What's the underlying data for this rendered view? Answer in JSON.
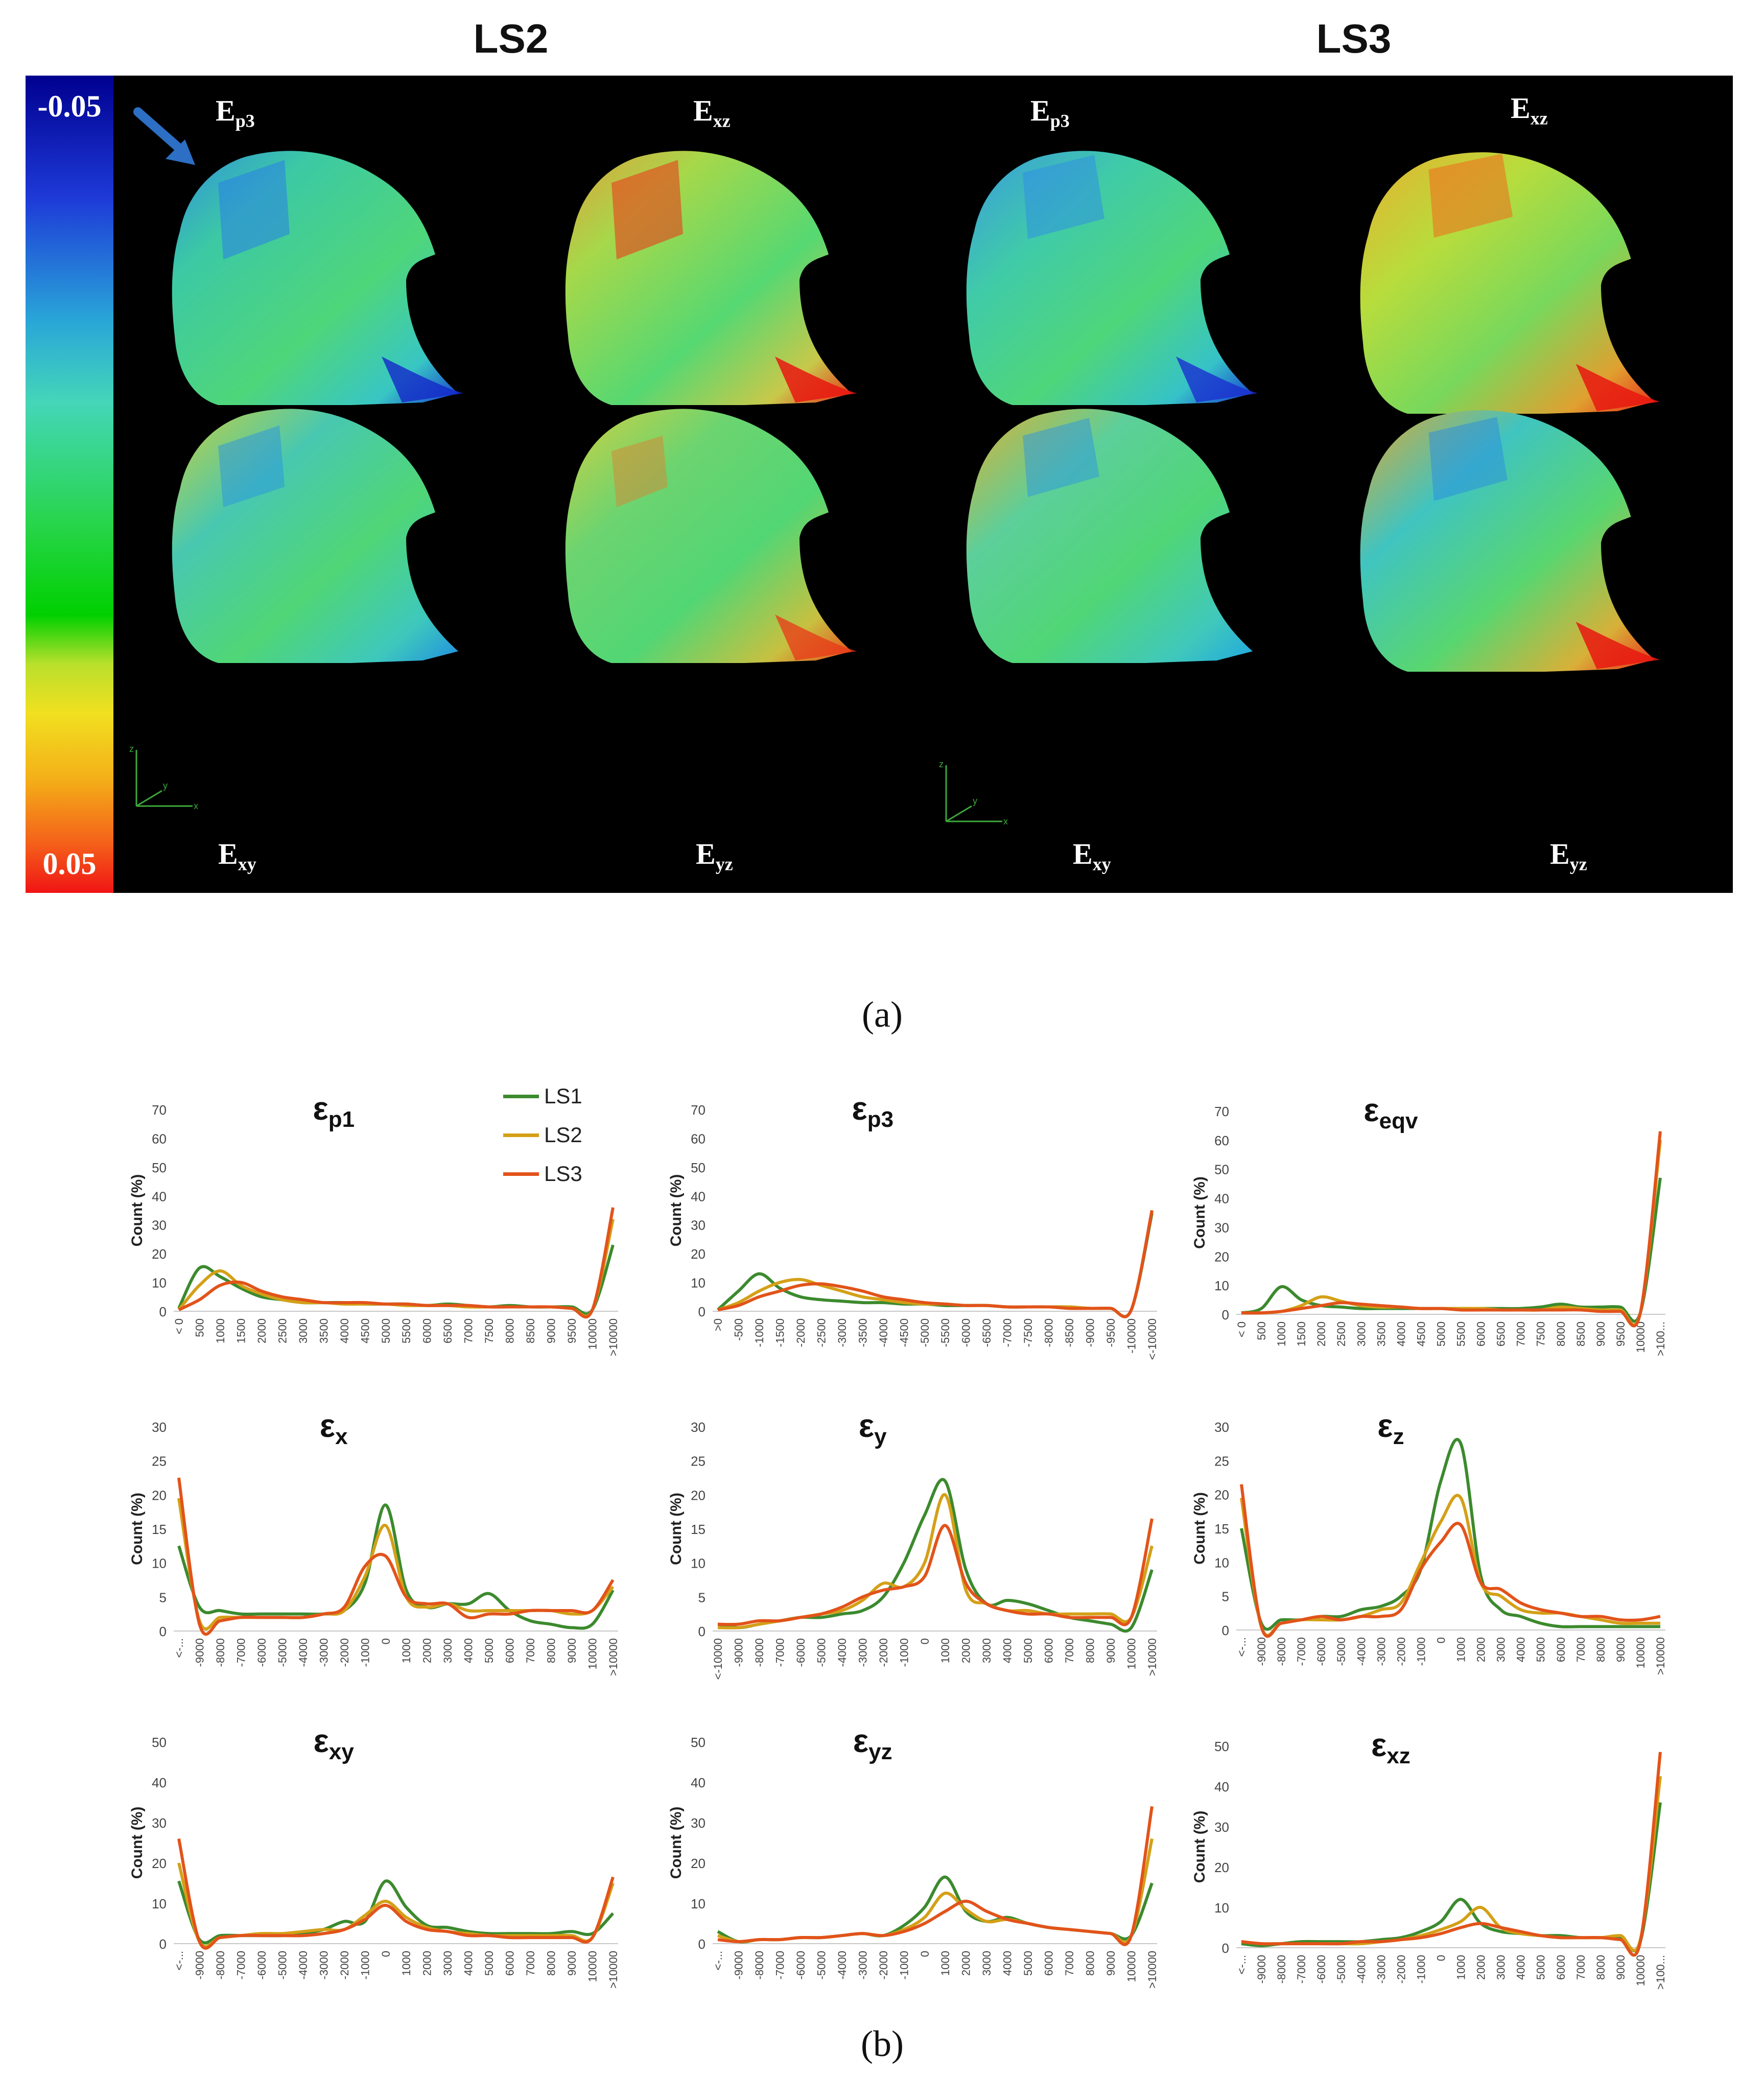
{
  "panel_a": {
    "headings": [
      "LS2",
      "LS3"
    ],
    "colorbar": {
      "top_label": "-0.05",
      "bottom_label": "0.05"
    },
    "bone_labels": {
      "top": [
        {
          "main": "E",
          "sub": "p3"
        },
        {
          "main": "E",
          "sub": "xz"
        },
        {
          "main": "E",
          "sub": "p3"
        },
        {
          "main": "E",
          "sub": "xz"
        }
      ],
      "bottom": [
        {
          "main": "E",
          "sub": "xy"
        },
        {
          "main": "E",
          "sub": "yz"
        },
        {
          "main": "E",
          "sub": "xy"
        },
        {
          "main": "E",
          "sub": "yz"
        }
      ]
    },
    "caption": "(a)"
  },
  "panel_b": {
    "caption": "(b)"
  },
  "legend": [
    {
      "label": "LS1",
      "color": "#3c8a2e"
    },
    {
      "label": "LS2",
      "color": "#d4a017"
    },
    {
      "label": "LS3",
      "color": "#e2531a"
    }
  ],
  "colors": {
    "LS1": "#3c8a2e",
    "LS2": "#d4a017",
    "LS3": "#e2531a"
  },
  "chart_data": [
    {
      "type": "line",
      "title_symbol": "ε",
      "title_sub": "p1",
      "ylabel": "Count (%)",
      "ylim": [
        0,
        70
      ],
      "yticks": [
        0,
        10,
        20,
        30,
        40,
        50,
        60,
        70
      ],
      "categories": [
        "< 0",
        "500",
        "1000",
        "1500",
        "2000",
        "2500",
        "3000",
        "3500",
        "4000",
        "4500",
        "5000",
        "5500",
        "6000",
        "6500",
        "7000",
        "7500",
        "8000",
        "8500",
        "9000",
        "9500",
        "10000",
        ">10000"
      ],
      "series": [
        {
          "name": "LS1",
          "values": [
            1,
            15,
            12,
            8,
            5,
            4,
            3,
            3,
            3,
            2.5,
            2.5,
            2.5,
            2,
            2.5,
            2,
            1.5,
            2,
            1.5,
            1.5,
            1.5,
            0.5,
            23
          ]
        },
        {
          "name": "LS2",
          "values": [
            0.5,
            9,
            14,
            9,
            6,
            4,
            3,
            3,
            2.5,
            2.5,
            2.5,
            2,
            2,
            2,
            1.5,
            1.5,
            1.5,
            1.5,
            1.5,
            1,
            0.5,
            32
          ]
        },
        {
          "name": "LS3",
          "values": [
            0.5,
            4,
            9,
            10,
            7,
            5,
            4,
            3,
            3,
            3,
            2.5,
            2.5,
            2,
            2,
            2,
            1.5,
            1.5,
            1.5,
            1.5,
            1,
            0.5,
            36
          ]
        }
      ]
    },
    {
      "type": "line",
      "title_symbol": "ε",
      "title_sub": "p3",
      "ylabel": "Count (%)",
      "ylim": [
        0,
        70
      ],
      "yticks": [
        0,
        10,
        20,
        30,
        40,
        50,
        60,
        70
      ],
      "categories": [
        ">0",
        "-500",
        "-1000",
        "-1500",
        "-2000",
        "-2500",
        "-3000",
        "-3500",
        "-4000",
        "-4500",
        "-5000",
        "-5500",
        "-6000",
        "-6500",
        "-7000",
        "-7500",
        "-8000",
        "-8500",
        "-9000",
        "-9500",
        "-10000",
        "<-10000"
      ],
      "series": [
        {
          "name": "LS1",
          "values": [
            0.5,
            7,
            13,
            8,
            5,
            4,
            3.5,
            3,
            3,
            2.5,
            2.5,
            2,
            2,
            2,
            1.5,
            1.5,
            1.5,
            1.5,
            1,
            1,
            0.5,
            34
          ]
        },
        {
          "name": "LS2",
          "values": [
            0.5,
            3,
            7,
            10,
            11,
            9,
            7,
            5,
            4,
            3,
            2.5,
            2.5,
            2,
            2,
            1.5,
            1.5,
            1.5,
            1.5,
            1,
            1,
            0.5,
            35
          ]
        },
        {
          "name": "LS3",
          "values": [
            0.5,
            2,
            5,
            7,
            9,
            9.5,
            8.5,
            7,
            5,
            4,
            3,
            2.5,
            2,
            2,
            1.5,
            1.5,
            1.5,
            1,
            1,
            1,
            0.5,
            35
          ]
        }
      ]
    },
    {
      "type": "line",
      "title_symbol": "ε",
      "title_sub": "eqv",
      "ylabel": "Count (%)",
      "ylim": [
        0,
        70
      ],
      "yticks": [
        0,
        10,
        20,
        30,
        40,
        50,
        60,
        70
      ],
      "categories": [
        "< 0",
        "500",
        "1000",
        "1500",
        "2000",
        "2500",
        "3000",
        "3500",
        "4000",
        "4500",
        "5000",
        "5500",
        "6000",
        "6500",
        "7000",
        "7500",
        "8000",
        "8500",
        "9000",
        "9500",
        "10000",
        ">100..."
      ],
      "series": [
        {
          "name": "LS1",
          "values": [
            0.5,
            2,
            9.5,
            5,
            3,
            2.5,
            2,
            2,
            2,
            2,
            2,
            2,
            2,
            2,
            2,
            2.5,
            3.5,
            2.5,
            2.5,
            2.5,
            0.5,
            47
          ]
        },
        {
          "name": "LS2",
          "values": [
            0.5,
            0.5,
            1,
            3,
            6,
            4.5,
            3,
            2.5,
            2.5,
            2,
            2,
            2,
            2,
            1.5,
            1.5,
            1.5,
            2.5,
            2,
            1.5,
            1.5,
            0.5,
            60
          ]
        },
        {
          "name": "LS3",
          "values": [
            0.5,
            0.5,
            1,
            2,
            3,
            4,
            3.5,
            3,
            2.5,
            2,
            2,
            1.5,
            1.5,
            1.5,
            1.5,
            1.5,
            1.5,
            1.5,
            1,
            1,
            0.5,
            63
          ]
        }
      ]
    },
    {
      "type": "line",
      "title_symbol": "ε",
      "title_sub": "x",
      "ylabel": "Count (%)",
      "ylim": [
        0,
        30
      ],
      "yticks": [
        0,
        5,
        10,
        15,
        20,
        25,
        30
      ],
      "categories": [
        "<-...",
        "-9000",
        "-8000",
        "-7000",
        "-6000",
        "-5000",
        "-4000",
        "-3000",
        "-2000",
        "-1000",
        "0",
        "1000",
        "2000",
        "3000",
        "4000",
        "5000",
        "6000",
        "7000",
        "8000",
        "9000",
        "10000",
        ">10000"
      ],
      "series": [
        {
          "name": "LS1",
          "values": [
            12.5,
            3.5,
            3,
            2.5,
            2.5,
            2.5,
            2.5,
            2.5,
            3,
            7,
            18.5,
            6,
            3.5,
            4,
            4,
            5.5,
            3,
            1.5,
            1,
            0.5,
            1,
            6
          ]
        },
        {
          "name": "LS2",
          "values": [
            19.5,
            1.5,
            2,
            2,
            2,
            2,
            2,
            2.5,
            3,
            8,
            15.5,
            5,
            3.5,
            4,
            3,
            3,
            3,
            3,
            3,
            2.5,
            3,
            6.5
          ]
        },
        {
          "name": "LS3",
          "values": [
            22.5,
            1,
            1.5,
            2,
            2,
            2,
            2,
            2.5,
            3.5,
            9.5,
            11,
            5,
            4,
            4,
            2,
            2.5,
            2.5,
            3,
            3,
            3,
            3,
            7.5
          ]
        }
      ]
    },
    {
      "type": "line",
      "title_symbol": "ε",
      "title_sub": "y",
      "ylabel": "Count (%)",
      "ylim": [
        0,
        30
      ],
      "yticks": [
        0,
        5,
        10,
        15,
        20,
        25,
        30
      ],
      "categories": [
        "<-10000",
        "-9000",
        "-8000",
        "-7000",
        "-6000",
        "-5000",
        "-4000",
        "-3000",
        "-2000",
        "-1000",
        "0",
        "1000",
        "2000",
        "3000",
        "4000",
        "5000",
        "6000",
        "7000",
        "8000",
        "9000",
        "10000",
        ">10000"
      ],
      "series": [
        {
          "name": "LS1",
          "values": [
            1,
            0.5,
            1,
            1.5,
            2,
            2,
            2.5,
            3,
            5,
            10,
            17,
            22,
            9,
            4,
            4.5,
            4,
            3,
            2,
            1.5,
            1,
            0.5,
            9
          ]
        },
        {
          "name": "LS2",
          "values": [
            0.5,
            0.5,
            1,
            1.5,
            2,
            2.5,
            3,
            4.5,
            7,
            6.5,
            10,
            20,
            6,
            4,
            3,
            3,
            2.5,
            2.5,
            2.5,
            2.5,
            2,
            12.5
          ]
        },
        {
          "name": "LS3",
          "values": [
            1,
            1,
            1.5,
            1.5,
            2,
            2.5,
            3.5,
            5,
            6,
            6.5,
            8,
            15.5,
            7,
            4,
            3,
            2.5,
            2.5,
            2,
            2,
            2,
            2,
            16.5
          ]
        }
      ]
    },
    {
      "type": "line",
      "title_symbol": "ε",
      "title_sub": "z",
      "ylabel": "Count (%)",
      "ylim": [
        0,
        30
      ],
      "yticks": [
        0,
        5,
        10,
        15,
        20,
        25,
        30
      ],
      "categories": [
        "<-...",
        "-9000",
        "-8000",
        "-7000",
        "-6000",
        "-5000",
        "-4000",
        "-3000",
        "-2000",
        "-1000",
        "0",
        "1000",
        "2000",
        "3000",
        "4000",
        "5000",
        "6000",
        "7000",
        "8000",
        "9000",
        "10000",
        ">10000"
      ],
      "series": [
        {
          "name": "LS1",
          "values": [
            15,
            1,
            1.5,
            1.5,
            2,
            2,
            3,
            3.5,
            5,
            9,
            22,
            27.5,
            8,
            3,
            2,
            1,
            0.5,
            0.5,
            0.5,
            0.5,
            0.5,
            0.5
          ]
        },
        {
          "name": "LS2",
          "values": [
            19.5,
            0.5,
            1,
            1.5,
            1.5,
            1.5,
            2,
            3,
            4,
            10,
            16,
            19.5,
            7,
            5,
            3,
            2.5,
            2.5,
            2,
            1.5,
            1,
            1,
            1
          ]
        },
        {
          "name": "LS3",
          "values": [
            21.5,
            0.5,
            1,
            1.5,
            2,
            1.5,
            2,
            2,
            3,
            9,
            13,
            15.5,
            7,
            6,
            4,
            3,
            2.5,
            2,
            2,
            1.5,
            1.5,
            2
          ]
        }
      ]
    },
    {
      "type": "line",
      "title_symbol": "ε",
      "title_sub": "xy",
      "ylabel": "Count (%)",
      "ylim": [
        0,
        50
      ],
      "yticks": [
        0,
        10,
        20,
        30,
        40,
        50
      ],
      "categories": [
        "<-...",
        "-9000",
        "-8000",
        "-7000",
        "-6000",
        "-5000",
        "-4000",
        "-3000",
        "-2000",
        "-1000",
        "0",
        "1000",
        "2000",
        "3000",
        "4000",
        "5000",
        "6000",
        "7000",
        "8000",
        "9000",
        "10000",
        ">10000"
      ],
      "series": [
        {
          "name": "LS1",
          "values": [
            15.5,
            1,
            2,
            2,
            2,
            2,
            2.5,
            3.5,
            5.5,
            5.5,
            15.5,
            9,
            4.5,
            4,
            3,
            2.5,
            2.5,
            2.5,
            2.5,
            3,
            2.5,
            7.5
          ]
        },
        {
          "name": "LS2",
          "values": [
            20,
            0.5,
            1.5,
            2,
            2.5,
            2.5,
            3,
            3.5,
            3.5,
            7,
            10.5,
            6.5,
            4,
            3,
            2.5,
            2,
            2,
            2,
            2,
            2,
            1.5,
            15
          ]
        },
        {
          "name": "LS3",
          "values": [
            26,
            0.5,
            1.5,
            2,
            2,
            2,
            2,
            2.5,
            3.5,
            6,
            9.5,
            5.5,
            3.5,
            3,
            2,
            2,
            1.5,
            1.5,
            1.5,
            1.5,
            1.5,
            16.5
          ]
        }
      ]
    },
    {
      "type": "line",
      "title_symbol": "ε",
      "title_sub": "yz",
      "ylabel": "Count (%)",
      "ylim": [
        0,
        50
      ],
      "yticks": [
        0,
        10,
        20,
        30,
        40,
        50
      ],
      "categories": [
        "<-...",
        "-9000",
        "-8000",
        "-7000",
        "-6000",
        "-5000",
        "-4000",
        "-3000",
        "-2000",
        "-1000",
        "0",
        "1000",
        "2000",
        "3000",
        "4000",
        "5000",
        "6000",
        "7000",
        "8000",
        "9000",
        "10000",
        ">10000"
      ],
      "series": [
        {
          "name": "LS1",
          "values": [
            3,
            0.5,
            1,
            1,
            1.5,
            1.5,
            2,
            2.5,
            2,
            4.5,
            9,
            16.5,
            8,
            5.5,
            6.5,
            5,
            4,
            3.5,
            3,
            2.5,
            2,
            15
          ]
        },
        {
          "name": "LS2",
          "values": [
            2,
            0.5,
            1,
            1,
            1.5,
            1.5,
            2,
            2.5,
            2,
            3.5,
            6.5,
            12.5,
            8.5,
            5.5,
            6,
            5,
            4,
            3.5,
            3,
            2.5,
            2,
            26
          ]
        },
        {
          "name": "LS3",
          "values": [
            1,
            0.5,
            1,
            1,
            1.5,
            1.5,
            2,
            2.5,
            2,
            3,
            5,
            8,
            10.5,
            8,
            6,
            5,
            4,
            3.5,
            3,
            2.5,
            2,
            34
          ]
        }
      ]
    },
    {
      "type": "line",
      "title_symbol": "ε",
      "title_sub": "xz",
      "ylabel": "Count (%)",
      "ylim": [
        0,
        50
      ],
      "yticks": [
        0,
        10,
        20,
        30,
        40,
        50
      ],
      "categories": [
        "<-...",
        "-9000",
        "-8000",
        "-7000",
        "-6000",
        "-5000",
        "-4000",
        "-3000",
        "-2000",
        "-1000",
        "0",
        "1000",
        "2000",
        "3000",
        "4000",
        "5000",
        "6000",
        "7000",
        "8000",
        "9000",
        "10000",
        ">100..."
      ],
      "series": [
        {
          "name": "LS1",
          "values": [
            1,
            0.5,
            1,
            1.5,
            1.5,
            1.5,
            1.5,
            2,
            2.5,
            4,
            6.5,
            12,
            6,
            4,
            3.5,
            3,
            3,
            2.5,
            2.5,
            2.5,
            1.5,
            36
          ]
        },
        {
          "name": "LS2",
          "values": [
            1.5,
            1,
            1,
            1,
            1,
            1,
            1,
            1.5,
            2,
            3,
            4.5,
            6.5,
            10,
            5,
            3.5,
            3,
            2.5,
            2.5,
            2.5,
            3,
            2,
            42.5
          ]
        },
        {
          "name": "LS3",
          "values": [
            1.5,
            1,
            1,
            1,
            1,
            1,
            1.5,
            1.5,
            2,
            2.5,
            3.5,
            5,
            6,
            5,
            4,
            3,
            2.5,
            2.5,
            2.5,
            2,
            1.5,
            48.5
          ]
        }
      ]
    }
  ]
}
